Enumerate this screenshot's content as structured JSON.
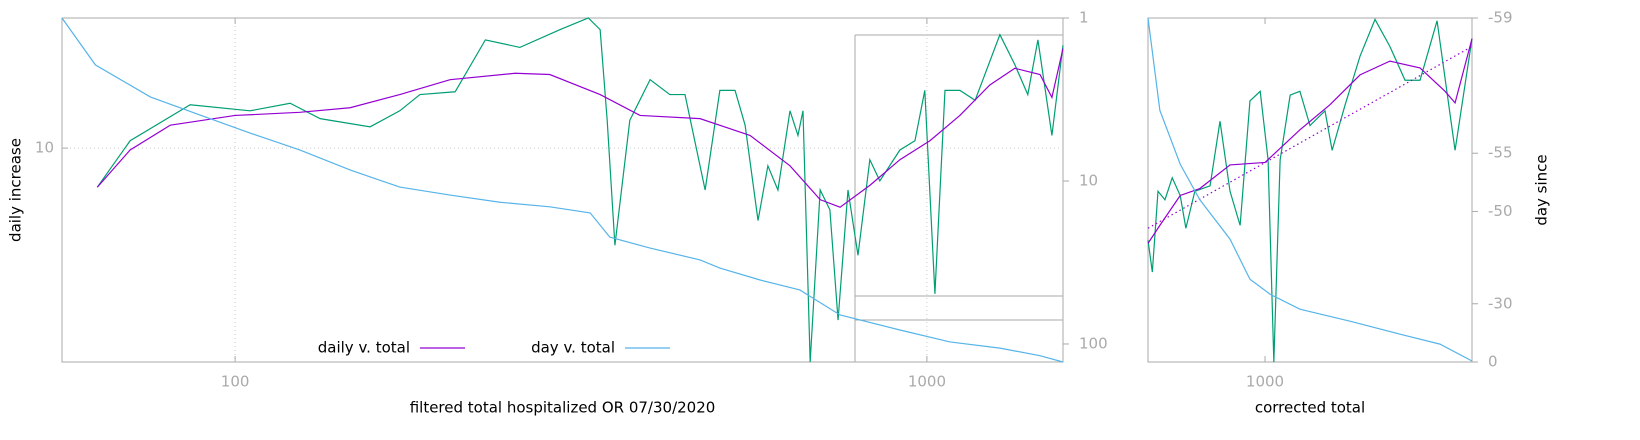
{
  "chart_data": [
    {
      "type": "line",
      "xlabel": "filtered total hospitalized OR 07/30/2020",
      "ylabel": "daily increase",
      "xscale": "log",
      "yscale": "log",
      "y2scale": "log",
      "y2reversed": true,
      "grid": true,
      "legend": "bottom",
      "xlim": [
        56.2,
        1573
      ],
      "xticks": [
        100,
        1000
      ],
      "ylim": [
        3.2,
        20
      ],
      "yticks": [
        10
      ],
      "y2lim": [
        1,
        129
      ],
      "y2ticks": [
        1,
        10,
        100
      ],
      "series": [
        {
          "color": "#009e73",
          "x": [
            63.2,
            70.5,
            86.1,
            105.1,
            120.1,
            132.7,
            156.7,
            173,
            185,
            208,
            230,
            258,
            295,
            324,
            337,
            345,
            354,
            372,
            398,
            425,
            447,
            478,
            502,
            528,
            546,
            570,
            589,
            609,
            634,
            651,
            662,
            678,
            701,
            724,
            744,
            769,
            795,
            827,
            855,
            914,
            961,
            993,
            1027,
            1062,
            1116,
            1174,
            1275,
            1340,
            1399,
            1447,
            1516,
            1573
          ],
          "values": [
            8.12,
            10.4,
            12.6,
            12.2,
            12.7,
            11.7,
            11.2,
            12.2,
            13.3,
            13.5,
            17.8,
            17.1,
            18.8,
            20.0,
            18.8,
            11.6,
            5.96,
            11.6,
            14.4,
            13.3,
            13.3,
            8.0,
            13.6,
            13.6,
            11.3,
            6.8,
            9.1,
            8.0,
            12.2,
            10.7,
            12.2,
            3.2,
            8.0,
            7.2,
            4.0,
            8.0,
            5.65,
            9.4,
            8.4,
            9.9,
            10.4,
            13.6,
            4.6,
            13.6,
            13.6,
            12.9,
            18.3,
            15.6,
            13.3,
            17.8,
            10.7,
            17.3
          ]
        },
        {
          "name": "daily v. total",
          "color": "#9400d3",
          "x": [
            63.2,
            70.5,
            80.6,
            100,
            124,
            146.6,
            173,
            204.5,
            254,
            285,
            337,
            385,
            470,
            555,
            634,
            701,
            749,
            827,
            914,
            1010,
            1116,
            1233,
            1340,
            1457,
            1516,
            1573
          ],
          "values": [
            8.12,
            9.9,
            11.3,
            11.9,
            12.1,
            12.4,
            13.3,
            14.4,
            14.9,
            14.8,
            13.3,
            11.9,
            11.7,
            10.7,
            9.1,
            7.6,
            7.3,
            8.2,
            9.4,
            10.4,
            11.9,
            14.0,
            15.3,
            14.8,
            13.1,
            17.0
          ]
        },
        {
          "name": "day v. total",
          "color": "#56b4e9",
          "axis": "y2",
          "x": [
            56.2,
            62.8,
            75.4,
            89.0,
            105.1,
            124,
            146.6,
            173,
            204.5,
            241.5,
            285,
            326,
            348,
            398,
            470,
            502,
            574,
            655,
            749,
            914,
            1080,
            1275,
            1457,
            1573
          ],
          "values": [
            1,
            1.94,
            3.05,
            3.94,
            5.08,
            6.45,
            8.56,
            10.9,
            12.2,
            13.5,
            14.4,
            15.7,
            22.1,
            25.8,
            30.5,
            34.2,
            40.5,
            46.6,
            66.4,
            82.1,
            97.2,
            106,
            118,
            129
          ]
        }
      ]
    },
    {
      "type": "line",
      "xlabel": "corrected total",
      "y2label": "day since",
      "xscale": "log",
      "yscale": "log",
      "y2scale": "log",
      "y2offset": 60,
      "y2reversed": true,
      "grid": false,
      "xlim": [
        711,
        1828
      ],
      "xticks": [
        1000
      ],
      "ylim": [
        4.8,
        18.2
      ],
      "y2lim": [
        -59,
        0
      ],
      "y2ticks": [
        -59,
        -55,
        -50,
        -30,
        0
      ],
      "series": [
        {
          "color": "#009e73",
          "x": [
            711,
            720,
            732,
            747,
            763,
            781,
            794,
            815,
            852,
            877,
            903,
            930,
            957,
            986,
            1009,
            1026,
            1045,
            1076,
            1107,
            1140,
            1191,
            1216,
            1263,
            1319,
            1378,
            1439,
            1504,
            1571,
            1651,
            1740,
            1828
          ],
          "values": [
            7.7,
            6.8,
            9.3,
            9.0,
            9.8,
            9.15,
            8.06,
            9.3,
            9.5,
            12.2,
            9.3,
            8.15,
            13.2,
            13.7,
            10.5,
            4.8,
            10.5,
            13.5,
            13.7,
            12.0,
            12.7,
            10.9,
            13.0,
            15.7,
            18.1,
            16.3,
            14.3,
            14.3,
            18.0,
            10.9,
            16.8
          ]
        },
        {
          "color": "#9400d3",
          "x": [
            711,
            736,
            781,
            827,
            903,
            1000,
            1107,
            1208,
            1319,
            1439,
            1571,
            1690,
            1740,
            1828
          ],
          "values": [
            7.6,
            8.15,
            9.15,
            9.4,
            10.3,
            10.4,
            11.8,
            13.0,
            14.6,
            15.4,
            15.0,
            13.7,
            13.1,
            16.8
          ]
        },
        {
          "color": "#9400d3",
          "dash": "dotted",
          "x": [
            711,
            1828
          ],
          "values": [
            8.06,
            16.3
          ]
        },
        {
          "color": "#56b4e9",
          "axis": "y2",
          "x": [
            711,
            736,
            781,
            827,
            903,
            957,
            1015,
            1107,
            1281,
            1482,
            1665,
            1828
          ],
          "values": [
            -59,
            -57.0,
            -54.3,
            -51.3,
            -46.1,
            -37.6,
            -33.2,
            -28.0,
            -23.1,
            -16.9,
            -11.5,
            -0.7
          ]
        }
      ]
    }
  ]
}
